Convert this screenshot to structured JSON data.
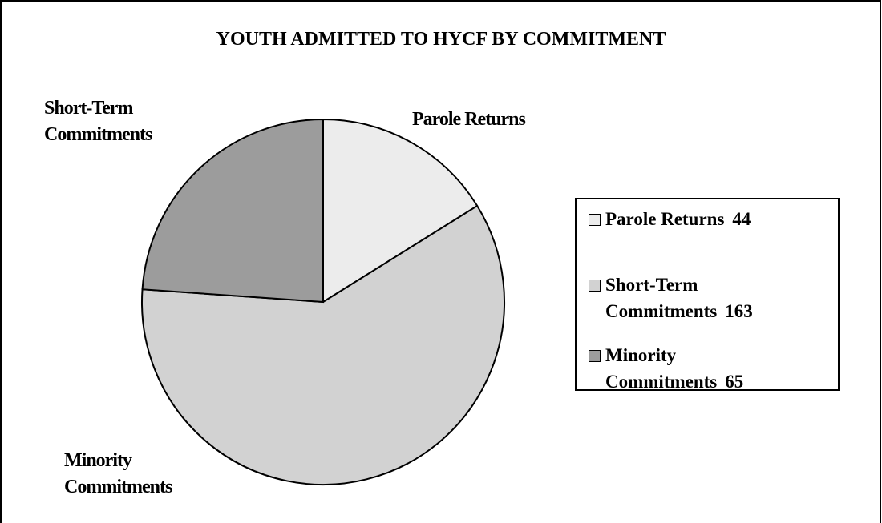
{
  "chart_data": {
    "type": "pie",
    "title": "YOUTH ADMITTED TO HYCF BY COMMITMENT",
    "categories": [
      "Parole Returns",
      "Short-Term Commitments",
      "Minority Commitments"
    ],
    "values": [
      44,
      163,
      65
    ],
    "colors": [
      "#ececec",
      "#d2d2d2",
      "#9c9c9c"
    ]
  }
}
